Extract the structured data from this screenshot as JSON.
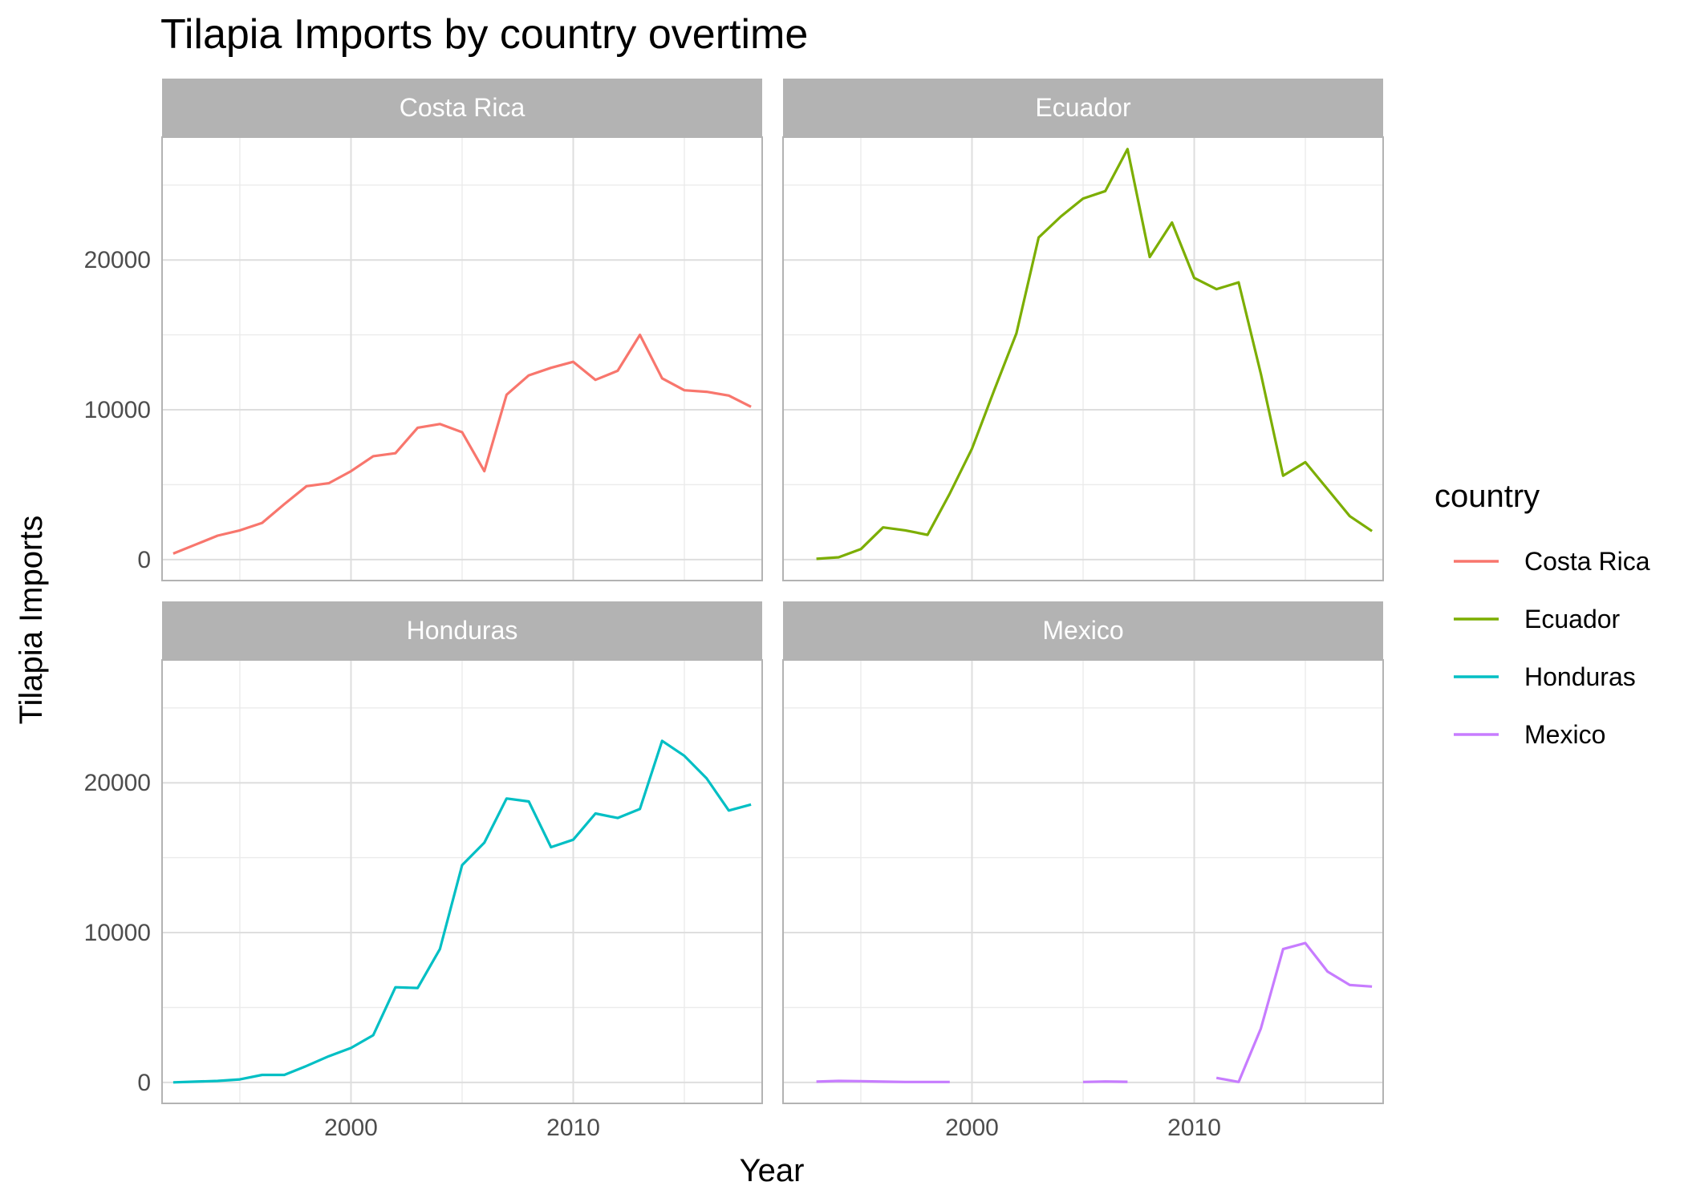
{
  "chart_data": {
    "type": "line",
    "title": "Tilapia Imports by country overtime",
    "xlabel": "Year",
    "ylabel": "Tilapia Imports",
    "xlim": [
      1991.5,
      2018.5
    ],
    "ylim": [
      -1400,
      28200
    ],
    "x_ticks": [
      2000,
      2010
    ],
    "y_ticks": [
      0,
      10000,
      20000
    ],
    "grid": true,
    "facet_layout": "2x2",
    "legend": {
      "title": "country",
      "position": "right"
    },
    "series": [
      {
        "name": "Costa Rica",
        "color": "#F8766D",
        "x": [
          1992,
          1993,
          1994,
          1995,
          1996,
          1997,
          1998,
          1999,
          2000,
          2001,
          2002,
          2003,
          2004,
          2005,
          2006,
          2007,
          2008,
          2009,
          2010,
          2011,
          2012,
          2013,
          2014,
          2015,
          2016,
          2017,
          2018
        ],
        "y": [
          400,
          1000,
          1600,
          1950,
          2450,
          3700,
          4900,
          5100,
          5900,
          6900,
          7100,
          8800,
          9050,
          8500,
          5900,
          11000,
          12300,
          12800,
          13200,
          12000,
          12600,
          15000,
          12100,
          11300,
          11200,
          10950,
          10200
        ]
      },
      {
        "name": "Ecuador",
        "color": "#7CAE00",
        "x": [
          1993,
          1994,
          1995,
          1996,
          1997,
          1998,
          1999,
          2000,
          2001,
          2002,
          2003,
          2004,
          2005,
          2006,
          2007,
          2008,
          2009,
          2010,
          2011,
          2012,
          2013,
          2014,
          2015,
          2016,
          2017,
          2018
        ],
        "y": [
          50,
          150,
          700,
          2150,
          1950,
          1650,
          4400,
          7400,
          11300,
          15100,
          21500,
          22900,
          24100,
          24600,
          27400,
          20200,
          22500,
          18800,
          18050,
          18500,
          12400,
          5600,
          6500,
          4700,
          2900,
          1900
        ]
      },
      {
        "name": "Honduras",
        "color": "#00BFC4",
        "x": [
          1992,
          1993,
          1994,
          1995,
          1996,
          1997,
          1998,
          1999,
          2000,
          2001,
          2002,
          2003,
          2004,
          2005,
          2006,
          2007,
          2008,
          2009,
          2010,
          2011,
          2012,
          2013,
          2014,
          2015,
          2016,
          2017,
          2018
        ],
        "y": [
          0,
          50,
          100,
          200,
          500,
          500,
          1100,
          1750,
          2300,
          3150,
          6350,
          6300,
          8900,
          14500,
          16000,
          18950,
          18750,
          15700,
          16200,
          17950,
          17650,
          18250,
          22800,
          21800,
          20300,
          18150,
          18550
        ]
      },
      {
        "name": "Mexico",
        "color": "#C77CFF",
        "x": [
          1993,
          1994,
          1995,
          1996,
          1997,
          1998,
          1999,
          null,
          2005,
          2006,
          2007,
          null,
          2011,
          2012,
          2013,
          2014,
          2015,
          2016,
          2017,
          2018
        ],
        "y": [
          50,
          100,
          80,
          50,
          30,
          30,
          30,
          null,
          30,
          60,
          40,
          null,
          300,
          30,
          3600,
          8900,
          9300,
          7400,
          6500,
          6400
        ]
      }
    ]
  }
}
